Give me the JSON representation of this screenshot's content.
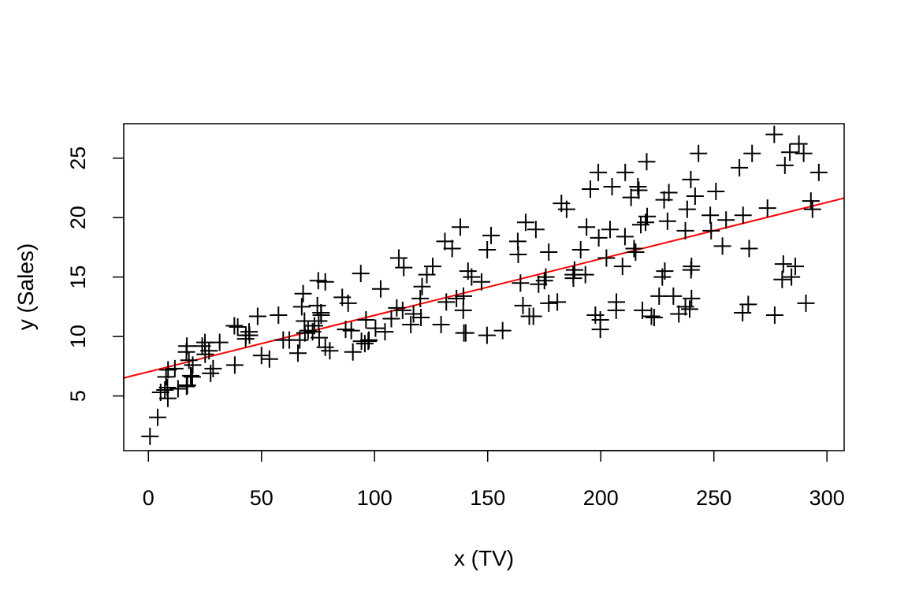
{
  "chart_data": {
    "type": "scatter",
    "title": "",
    "xlabel": "x (TV)",
    "ylabel": "y (Sales)",
    "xlim": [
      -10.9,
      307.6
    ],
    "ylim": [
      0.4,
      27.9
    ],
    "x_ticks": [
      0,
      50,
      100,
      150,
      200,
      250,
      300
    ],
    "y_ticks": [
      5,
      10,
      15,
      20,
      25
    ],
    "marker": "+",
    "point_color": "#000000",
    "series": [
      {
        "name": "observations",
        "points": [
          [
            0.7,
            1.6
          ],
          [
            4.1,
            3.2
          ],
          [
            5.4,
            5.3
          ],
          [
            7.3,
            5.5
          ],
          [
            8.4,
            5.7
          ],
          [
            8.6,
            4.8
          ],
          [
            7.8,
            6.6
          ],
          [
            13.1,
            5.6
          ],
          [
            16.9,
            5.8
          ],
          [
            17.2,
            5.9
          ],
          [
            8.7,
            7.2
          ],
          [
            11.7,
            7.3
          ],
          [
            18.7,
            6.7
          ],
          [
            19.4,
            6.6
          ],
          [
            19.6,
            7.6
          ],
          [
            17.9,
            8.0
          ],
          [
            16.8,
            8.7
          ],
          [
            17.0,
            9.2
          ],
          [
            23.8,
            9.2
          ],
          [
            25.0,
            9.5
          ],
          [
            25.1,
            8.5
          ],
          [
            26.8,
            8.8
          ],
          [
            27.5,
            6.9
          ],
          [
            28.6,
            7.3
          ],
          [
            31.5,
            9.5
          ],
          [
            38.0,
            10.9
          ],
          [
            38.2,
            7.6
          ],
          [
            39.5,
            10.8
          ],
          [
            43.0,
            9.8
          ],
          [
            43.1,
            10.1
          ],
          [
            44.5,
            10.4
          ],
          [
            44.7,
            10.1
          ],
          [
            48.3,
            11.7
          ],
          [
            50.0,
            8.4
          ],
          [
            53.5,
            8.1
          ],
          [
            57.5,
            11.8
          ],
          [
            59.6,
            9.7
          ],
          [
            62.3,
            9.7
          ],
          [
            66.1,
            8.6
          ],
          [
            66.9,
            9.7
          ],
          [
            67.8,
            12.5
          ],
          [
            68.4,
            13.6
          ],
          [
            69.0,
            11.3
          ],
          [
            69.2,
            10.3
          ],
          [
            70.6,
            10.5
          ],
          [
            72.6,
            10.4
          ],
          [
            73.4,
            10.9
          ],
          [
            74.7,
            12.6
          ],
          [
            75.1,
            14.7
          ],
          [
            75.3,
            11.3
          ],
          [
            76.3,
            12.0
          ],
          [
            76.4,
            11.8
          ],
          [
            78.2,
            14.6
          ],
          [
            75.5,
            9.9
          ],
          [
            78.2,
            9.1
          ],
          [
            80.2,
            8.8
          ],
          [
            85.7,
            13.3
          ],
          [
            87.2,
            10.6
          ],
          [
            88.3,
            12.8
          ],
          [
            89.7,
            10.5
          ],
          [
            90.4,
            8.7
          ],
          [
            93.9,
            15.3
          ],
          [
            94.2,
            9.6
          ],
          [
            95.7,
            9.4
          ],
          [
            96.2,
            11.4
          ],
          [
            97.2,
            9.6
          ],
          [
            97.5,
            9.7
          ],
          [
            100.4,
            10.7
          ],
          [
            102.7,
            14.0
          ],
          [
            104.6,
            10.4
          ],
          [
            107.4,
            11.5
          ],
          [
            109.8,
            12.4
          ],
          [
            110.7,
            16.6
          ],
          [
            112.9,
            15.8
          ],
          [
            112.4,
            12.2
          ],
          [
            116.0,
            11.0
          ],
          [
            117.2,
            11.9
          ],
          [
            120.2,
            13.2
          ],
          [
            120.5,
            11.6
          ],
          [
            121.0,
            14.2
          ],
          [
            123.1,
            15.2
          ],
          [
            125.7,
            15.9
          ],
          [
            129.4,
            11.0
          ],
          [
            131.1,
            18.0
          ],
          [
            131.7,
            12.9
          ],
          [
            134.3,
            17.4
          ],
          [
            136.2,
            13.2
          ],
          [
            137.9,
            19.2
          ],
          [
            139.2,
            12.2
          ],
          [
            139.5,
            10.3
          ],
          [
            140.3,
            10.3
          ],
          [
            139.3,
            13.4
          ],
          [
            141.3,
            15.5
          ],
          [
            142.9,
            15.0
          ],
          [
            147.3,
            14.6
          ],
          [
            149.7,
            10.1
          ],
          [
            149.8,
            17.3
          ],
          [
            151.5,
            18.5
          ],
          [
            156.6,
            10.5
          ],
          [
            163.3,
            18.0
          ],
          [
            163.5,
            16.9
          ],
          [
            164.5,
            14.5
          ],
          [
            165.6,
            12.6
          ],
          [
            166.8,
            19.6
          ],
          [
            168.4,
            11.7
          ],
          [
            170.2,
            11.7
          ],
          [
            171.3,
            19.0
          ],
          [
            172.5,
            14.4
          ],
          [
            175.1,
            14.7
          ],
          [
            175.7,
            15.0
          ],
          [
            177.0,
            17.1
          ],
          [
            177.0,
            12.8
          ],
          [
            180.8,
            12.9
          ],
          [
            182.6,
            21.2
          ],
          [
            184.9,
            20.7
          ],
          [
            187.8,
            15.2
          ],
          [
            187.9,
            14.9
          ],
          [
            188.4,
            15.6
          ],
          [
            191.1,
            17.3
          ],
          [
            193.2,
            15.2
          ],
          [
            193.7,
            19.2
          ],
          [
            195.4,
            22.4
          ],
          [
            197.6,
            11.8
          ],
          [
            198.9,
            23.8
          ],
          [
            199.1,
            18.3
          ],
          [
            199.8,
            10.6
          ],
          [
            199.8,
            11.4
          ],
          [
            202.5,
            16.6
          ],
          [
            204.1,
            19.0
          ],
          [
            205.0,
            22.6
          ],
          [
            206.8,
            12.2
          ],
          [
            206.9,
            12.9
          ],
          [
            209.6,
            15.9
          ],
          [
            210.7,
            18.4
          ],
          [
            210.8,
            23.8
          ],
          [
            213.4,
            21.7
          ],
          [
            214.7,
            17.4
          ],
          [
            215.4,
            17.1
          ],
          [
            216.4,
            22.6
          ],
          [
            216.8,
            22.3
          ],
          [
            217.7,
            19.4
          ],
          [
            218.4,
            12.2
          ],
          [
            219.8,
            19.6
          ],
          [
            220.3,
            24.7
          ],
          [
            220.5,
            20.1
          ],
          [
            222.4,
            11.7
          ],
          [
            223.6,
            11.6
          ],
          [
            225.8,
            13.4
          ],
          [
            227.2,
            15.0
          ],
          [
            228.0,
            21.5
          ],
          [
            228.3,
            15.5
          ],
          [
            229.5,
            19.7
          ],
          [
            230.1,
            22.1
          ],
          [
            232.1,
            13.4
          ],
          [
            234.5,
            11.9
          ],
          [
            237.4,
            12.5
          ],
          [
            237.4,
            18.9
          ],
          [
            238.2,
            20.7
          ],
          [
            239.3,
            12.3
          ],
          [
            239.8,
            23.2
          ],
          [
            239.9,
            15.6
          ],
          [
            240.1,
            13.2
          ],
          [
            240.1,
            15.9
          ],
          [
            241.7,
            21.8
          ],
          [
            243.2,
            25.4
          ],
          [
            248.4,
            20.2
          ],
          [
            248.8,
            18.9
          ],
          [
            250.9,
            22.2
          ],
          [
            253.8,
            17.6
          ],
          [
            255.4,
            19.8
          ],
          [
            261.3,
            24.2
          ],
          [
            262.7,
            12.0
          ],
          [
            262.9,
            20.2
          ],
          [
            265.2,
            12.7
          ],
          [
            265.6,
            17.4
          ],
          [
            266.9,
            25.4
          ],
          [
            273.7,
            20.8
          ],
          [
            276.7,
            27.0
          ],
          [
            276.9,
            11.8
          ],
          [
            280.2,
            14.8
          ],
          [
            280.7,
            16.1
          ],
          [
            281.4,
            24.4
          ],
          [
            283.6,
            25.5
          ],
          [
            284.3,
            15.0
          ],
          [
            286.0,
            15.9
          ],
          [
            287.6,
            26.2
          ],
          [
            289.7,
            25.4
          ],
          [
            290.7,
            12.8
          ],
          [
            292.9,
            21.4
          ],
          [
            293.6,
            20.7
          ],
          [
            296.4,
            23.8
          ]
        ]
      }
    ],
    "fit_line": {
      "name": "least-squares fit",
      "color": "#ff0000",
      "intercept": 7.03,
      "slope": 0.0475
    }
  }
}
